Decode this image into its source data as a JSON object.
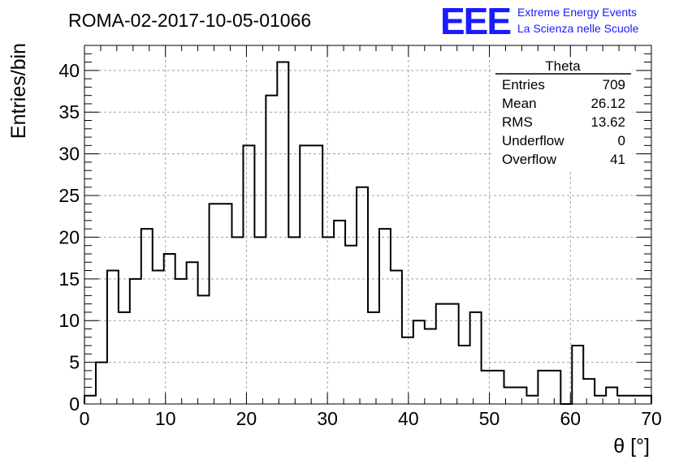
{
  "header": {
    "title": "ROMA-02-2017-10-05-01066",
    "logo_text": "EEE",
    "logo_line1": "Extreme Energy Events",
    "logo_line2": "La Scienza nelle Scuole"
  },
  "stats": {
    "name": "Theta",
    "rows": [
      {
        "label": "Entries",
        "value": "709"
      },
      {
        "label": "Mean",
        "value": "26.12"
      },
      {
        "label": "RMS",
        "value": "13.62"
      },
      {
        "label": "Underflow",
        "value": "0"
      },
      {
        "label": "Overflow",
        "value": "41"
      }
    ]
  },
  "colors": {
    "logo": "#1a1aff",
    "histogram": "#000000",
    "grid": "#a0a0a0"
  },
  "chart_data": {
    "type": "bar",
    "style": "step histogram",
    "xlabel": "θ [°]",
    "ylabel": "Entries/bin",
    "xlim": [
      0,
      70
    ],
    "ylim": [
      0,
      43
    ],
    "bin_width": 1.4,
    "bin_edges_start": 0,
    "values": [
      1,
      5,
      16,
      11,
      15,
      21,
      16,
      18,
      15,
      17,
      13,
      24,
      24,
      20,
      31,
      20,
      37,
      41,
      20,
      31,
      31,
      20,
      22,
      19,
      26,
      11,
      21,
      16,
      8,
      10,
      9,
      12,
      12,
      7,
      11,
      4,
      4,
      2,
      2,
      1,
      4,
      4,
      0,
      7,
      3,
      1,
      2,
      1,
      1,
      1
    ],
    "x_ticks": [
      0,
      10,
      20,
      30,
      40,
      50,
      60,
      70
    ],
    "y_ticks": [
      0,
      5,
      10,
      15,
      20,
      25,
      30,
      35,
      40
    ],
    "grid": true
  }
}
